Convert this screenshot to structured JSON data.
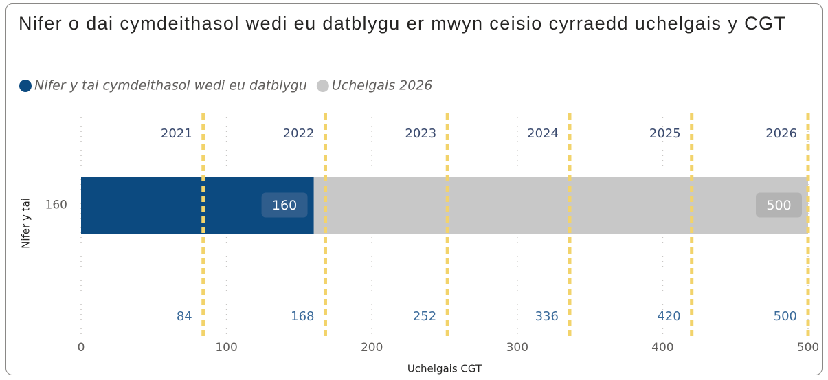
{
  "chart_data": {
    "type": "bar",
    "orientation": "horizontal",
    "title": "Nifer o dai cymdeithasol wedi eu datblygu er mwyn ceisio cyrraedd uchelgais y CGT",
    "categories": [
      "160"
    ],
    "series": [
      {
        "name": "Uchelgais 2026",
        "color": "#c8c8c8",
        "label_bg": "#b3b3b3",
        "values": [
          500
        ]
      },
      {
        "name": "Nifer y tai cymdeithasol wedi eu datblygu",
        "color": "#0c4a80",
        "label_bg": "#2f5d8c",
        "values": [
          160
        ]
      }
    ],
    "legend_order": [
      1,
      0
    ],
    "x_label": "Uchelgais CGT",
    "y_label": "Nifer y tai",
    "xlim": [
      0,
      500
    ],
    "xticks": [
      0,
      100,
      200,
      300,
      400,
      500
    ],
    "grid": true,
    "reference_lines": [
      {
        "value": 84,
        "label": "2021"
      },
      {
        "value": 168,
        "label": "2022"
      },
      {
        "value": 252,
        "label": "2023"
      },
      {
        "value": 336,
        "label": "2024"
      },
      {
        "value": 420,
        "label": "2025"
      },
      {
        "value": 500,
        "label": "2026"
      }
    ],
    "reference_color": "#f2d36b"
  }
}
